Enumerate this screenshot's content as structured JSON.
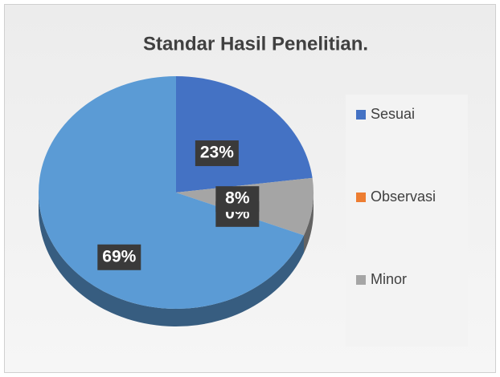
{
  "chart_data": {
    "type": "pie",
    "title": "Standar Hasil Penelitian.",
    "categories": [
      "Sesuai",
      "Observasi",
      "Minor",
      null
    ],
    "values": [
      23,
      0,
      8,
      69
    ],
    "value_labels": [
      "23%",
      "0%",
      "8%",
      "69%"
    ],
    "colors": [
      "#4472c4",
      "#ed7d31",
      "#a5a5a5",
      "#5b9bd5"
    ],
    "legend": "right"
  }
}
